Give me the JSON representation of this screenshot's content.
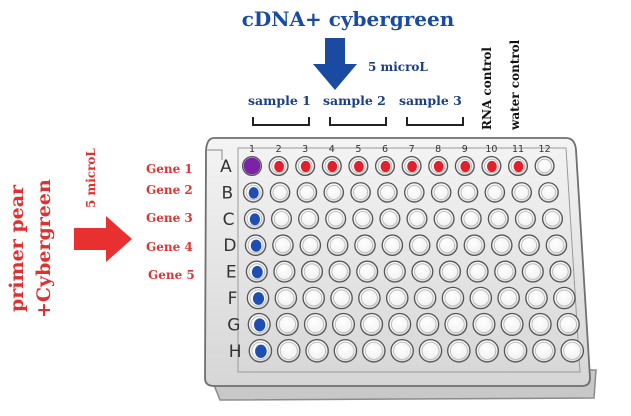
{
  "title": "cDNA+ cybergreen",
  "top_volume": "5 microL",
  "samples": [
    "sample 1",
    "sample 2",
    "sample 3"
  ],
  "controls": [
    "RNA control",
    "water control"
  ],
  "left_label_line1": "primer pear",
  "left_label_line2": "+Cybergreen",
  "left_volume": "5 microL",
  "genes": [
    "Gene 1",
    "Gene 2",
    "Gene 3",
    "Gene 4",
    "Gene 5"
  ],
  "plate": {
    "columns": [
      "1",
      "2",
      "3",
      "4",
      "5",
      "6",
      "7",
      "8",
      "9",
      "10",
      "11",
      "12"
    ],
    "rows": [
      "A",
      "B",
      "C",
      "D",
      "E",
      "F",
      "G",
      "H"
    ],
    "filled_wells": [
      {
        "row": "A",
        "col": 1,
        "color": "#7b22a8"
      },
      {
        "row": "A",
        "col": 2,
        "color": "#e0202c"
      },
      {
        "row": "A",
        "col": 3,
        "color": "#e0202c"
      },
      {
        "row": "A",
        "col": 4,
        "color": "#e0202c"
      },
      {
        "row": "A",
        "col": 5,
        "color": "#e0202c"
      },
      {
        "row": "A",
        "col": 6,
        "color": "#e0202c"
      },
      {
        "row": "A",
        "col": 7,
        "color": "#e0202c"
      },
      {
        "row": "A",
        "col": 8,
        "color": "#e0202c"
      },
      {
        "row": "A",
        "col": 9,
        "color": "#e0202c"
      },
      {
        "row": "A",
        "col": 10,
        "color": "#e0202c"
      },
      {
        "row": "A",
        "col": 11,
        "color": "#e0202c"
      },
      {
        "row": "B",
        "col": 1,
        "color": "#1e4fb0"
      },
      {
        "row": "C",
        "col": 1,
        "color": "#1e4fb0"
      },
      {
        "row": "D",
        "col": 1,
        "color": "#1e4fb0"
      },
      {
        "row": "E",
        "col": 1,
        "color": "#1e4fb0"
      },
      {
        "row": "F",
        "col": 1,
        "color": "#1e4fb0"
      },
      {
        "row": "G",
        "col": 1,
        "color": "#1e4fb0"
      },
      {
        "row": "H",
        "col": 1,
        "color": "#1e4fb0"
      }
    ]
  },
  "colors": {
    "blue_arrow": "#1a4ba0",
    "red_arrow": "#e83030",
    "gene_text": "#e03333"
  }
}
